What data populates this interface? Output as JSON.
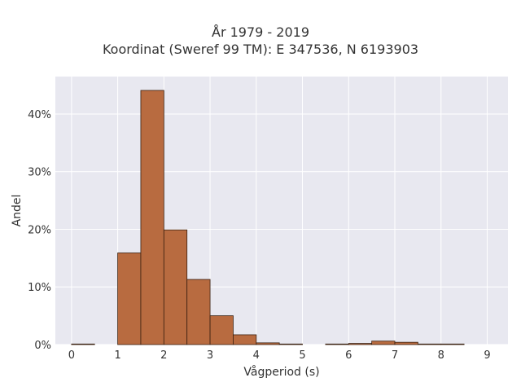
{
  "chart_data": {
    "type": "bar",
    "title": "År 1979 - 2019",
    "subtitle": "Koordinat (Sweref 99 TM): E 347536, N 6193903",
    "xlabel": "Vågperiod (s)",
    "ylabel": "Andel",
    "xlim": [
      -0.35,
      9.45
    ],
    "ylim": [
      0,
      0.465
    ],
    "x_ticks": [
      0,
      1,
      2,
      3,
      4,
      5,
      6,
      7,
      8,
      9
    ],
    "y_ticks": [
      0,
      0.1,
      0.2,
      0.3,
      0.4
    ],
    "y_tick_labels": [
      "0%",
      "10%",
      "20%",
      "30%",
      "40%"
    ],
    "grid": true,
    "bin_width": 0.5,
    "bins": [
      {
        "x0": 0.0,
        "x1": 0.5,
        "value": 0.001
      },
      {
        "x0": 0.5,
        "x1": 1.0,
        "value": 0.0
      },
      {
        "x0": 1.0,
        "x1": 1.5,
        "value": 0.159
      },
      {
        "x0": 1.5,
        "x1": 2.0,
        "value": 0.441
      },
      {
        "x0": 2.0,
        "x1": 2.5,
        "value": 0.199
      },
      {
        "x0": 2.5,
        "x1": 3.0,
        "value": 0.113
      },
      {
        "x0": 3.0,
        "x1": 3.5,
        "value": 0.05
      },
      {
        "x0": 3.5,
        "x1": 4.0,
        "value": 0.017
      },
      {
        "x0": 4.0,
        "x1": 4.5,
        "value": 0.003
      },
      {
        "x0": 4.5,
        "x1": 5.0,
        "value": 0.001
      },
      {
        "x0": 5.0,
        "x1": 5.5,
        "value": 0.0
      },
      {
        "x0": 5.5,
        "x1": 6.0,
        "value": 0.001
      },
      {
        "x0": 6.0,
        "x1": 6.5,
        "value": 0.002
      },
      {
        "x0": 6.5,
        "x1": 7.0,
        "value": 0.006
      },
      {
        "x0": 7.0,
        "x1": 7.5,
        "value": 0.004
      },
      {
        "x0": 7.5,
        "x1": 8.0,
        "value": 0.001
      },
      {
        "x0": 8.0,
        "x1": 8.5,
        "value": 0.001
      }
    ],
    "colors": {
      "bar_fill": "#b86b40",
      "bar_edge": "#3a2010",
      "plot_background": "#e8e8f0",
      "grid": "#ffffff"
    }
  }
}
